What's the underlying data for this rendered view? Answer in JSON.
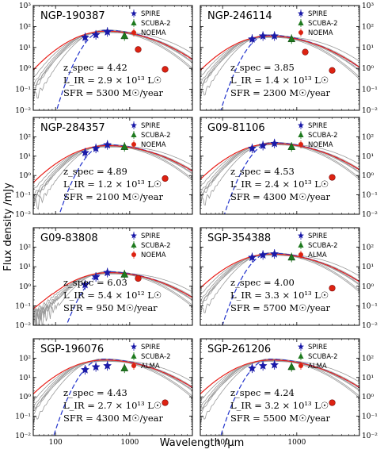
{
  "figure": {
    "ylabel": "Flux density /mJy",
    "xlabel": "Wavelength /μm",
    "y_tick_labels": [
      "10⁻²",
      "10⁻¹",
      "10⁰",
      "10¹",
      "10²",
      "10³"
    ],
    "x_tick_labels": [
      "100",
      "1000"
    ]
  },
  "chart_data": [
    {
      "type": "scatter",
      "name": "NGP-190387",
      "z_spec": "z_spec = 4.42",
      "L_IR": "L_IR = 2.9 × 10¹³ L☉",
      "SFR": "SFR = 5300 M☉/year",
      "legend": [
        "SPIRE",
        "SCUBA-2",
        "NOEMA"
      ],
      "xlim": [
        50,
        7000
      ],
      "ylim": [
        0.01,
        1000
      ],
      "xscale": "log",
      "yscale": "log",
      "points": {
        "SPIRE": [
          [
            250,
            30
          ],
          [
            350,
            40
          ],
          [
            500,
            55
          ]
        ],
        "SCUBA-2": [
          [
            850,
            35
          ]
        ],
        "NOEMA": [
          [
            1300,
            8
          ],
          [
            3000,
            0.9
          ]
        ]
      },
      "x_label_side": "hidden",
      "y_label_side": "left",
      "best_fit_peak": [
        480,
        60
      ]
    },
    {
      "type": "scatter",
      "name": "NGP-246114",
      "z_spec": "z_spec = 3.85",
      "L_IR": "L_IR = 1.4 × 10¹³ L☉",
      "SFR": "SFR = 2300 M☉/year",
      "legend": [
        "SPIRE",
        "SCUBA-2",
        "NOEMA"
      ],
      "xlim": [
        50,
        7000
      ],
      "ylim": [
        0.01,
        1000
      ],
      "xscale": "log",
      "yscale": "log",
      "points": {
        "SPIRE": [
          [
            250,
            25
          ],
          [
            350,
            35
          ],
          [
            500,
            35
          ]
        ],
        "SCUBA-2": [
          [
            850,
            25
          ]
        ],
        "NOEMA": [
          [
            1300,
            6
          ],
          [
            3000,
            0.8
          ]
        ]
      },
      "x_label_side": "hidden",
      "y_label_side": "right",
      "best_fit_peak": [
        420,
        35
      ]
    },
    {
      "type": "scatter",
      "name": "NGP-284357",
      "z_spec": "z_spec = 4.89",
      "L_IR": "L_IR = 1.2 × 10¹³ L☉",
      "SFR": "SFR = 2100 M☉/year",
      "legend": [
        "SPIRE",
        "SCUBA-2",
        "NOEMA"
      ],
      "xlim": [
        50,
        7000
      ],
      "ylim": [
        0.01,
        1000
      ],
      "xscale": "log",
      "yscale": "log",
      "points": {
        "SPIRE": [
          [
            250,
            15
          ],
          [
            350,
            25
          ],
          [
            500,
            38
          ]
        ],
        "SCUBA-2": [
          [
            850,
            30
          ]
        ],
        "NOEMA": [
          [
            3000,
            0.7
          ]
        ]
      },
      "x_label_side": "hidden",
      "y_label_side": "left",
      "best_fit_peak": [
        500,
        35
      ]
    },
    {
      "type": "scatter",
      "name": "G09-81106",
      "z_spec": "z_spec = 4.53",
      "L_IR": "L_IR = 2.4 × 10¹³ L☉",
      "SFR": "SFR = 4300 M☉/year",
      "legend": [
        "SPIRE",
        "SCUBA-2",
        "NOEMA"
      ],
      "xlim": [
        50,
        7000
      ],
      "ylim": [
        0.01,
        1000
      ],
      "xscale": "log",
      "yscale": "log",
      "points": {
        "SPIRE": [
          [
            250,
            25
          ],
          [
            350,
            35
          ],
          [
            500,
            45
          ]
        ],
        "SCUBA-2": [
          [
            850,
            30
          ]
        ],
        "NOEMA": [
          [
            3000,
            0.8
          ]
        ]
      },
      "x_label_side": "hidden",
      "y_label_side": "right",
      "best_fit_peak": [
        480,
        45
      ]
    },
    {
      "type": "scatter",
      "name": "G09-83808",
      "z_spec": "z_spec = 6.03",
      "L_IR": "L_IR = 5.4 × 10¹² L☉",
      "SFR": "SFR = 950 M☉/year",
      "legend": [
        "SPIRE",
        "SCUBA-2",
        "NOEMA"
      ],
      "xlim": [
        50,
        7000
      ],
      "ylim": [
        0.01,
        1000
      ],
      "xscale": "log",
      "yscale": "log",
      "points": {
        "SPIRE": [
          [
            250,
            1.2
          ],
          [
            350,
            3
          ],
          [
            500,
            5
          ]
        ],
        "SCUBA-2": [
          [
            850,
            4
          ]
        ],
        "NOEMA": [
          [
            1300,
            2.5
          ]
        ]
      },
      "x_label_side": "hidden",
      "y_label_side": "left",
      "best_fit_peak": [
        520,
        5
      ]
    },
    {
      "type": "scatter",
      "name": "SGP-354388",
      "z_spec": "z_spec = 4.00",
      "L_IR": "L_IR = 3.3 × 10¹³ L☉",
      "SFR": "SFR = 5700 M☉/year",
      "legend": [
        "SPIRE",
        "SCUBA-2",
        "ALMA"
      ],
      "xlim": [
        50,
        7000
      ],
      "ylim": [
        0.01,
        1000
      ],
      "xscale": "log",
      "yscale": "log",
      "points": {
        "SPIRE": [
          [
            250,
            30
          ],
          [
            350,
            40
          ],
          [
            500,
            45
          ]
        ],
        "SCUBA-2": [
          [
            850,
            30
          ]
        ],
        "ALMA": [
          [
            3000,
            0.8
          ]
        ]
      },
      "x_label_side": "hidden",
      "y_label_side": "right",
      "best_fit_peak": [
        450,
        45
      ]
    },
    {
      "type": "scatter",
      "name": "SGP-196076",
      "z_spec": "z_spec = 4.43",
      "L_IR": "L_IR = 2.7 × 10¹³ L☉",
      "SFR": "SFR = 4300 M☉/year",
      "legend": [
        "SPIRE",
        "SCUBA-2",
        "ALMA"
      ],
      "xlim": [
        50,
        7000
      ],
      "ylim": [
        0.01,
        1000
      ],
      "xscale": "log",
      "yscale": "log",
      "points": {
        "SPIRE": [
          [
            250,
            25
          ],
          [
            350,
            35
          ],
          [
            500,
            40
          ]
        ],
        "SCUBA-2": [
          [
            850,
            30
          ]
        ],
        "ALMA": [
          [
            3000,
            0.5
          ]
        ]
      },
      "x_label_side": "bottom",
      "y_label_side": "left",
      "best_fit_peak": [
        450,
        80
      ]
    },
    {
      "type": "scatter",
      "name": "SGP-261206",
      "z_spec": "z_spec = 4.24",
      "L_IR": "L_IR = 3.2 × 10¹³ L☉",
      "SFR": "SFR = 5500 M☉/year",
      "legend": [
        "SPIRE",
        "SCUBA-2",
        "ALMA"
      ],
      "xlim": [
        50,
        7000
      ],
      "ylim": [
        0.01,
        1000
      ],
      "xscale": "log",
      "yscale": "log",
      "points": {
        "SPIRE": [
          [
            250,
            30
          ],
          [
            350,
            40
          ],
          [
            500,
            45
          ]
        ],
        "SCUBA-2": [
          [
            850,
            35
          ]
        ],
        "ALMA": [
          [
            3000,
            0.5
          ]
        ]
      },
      "x_label_side": "bottom",
      "y_label_side": "right",
      "best_fit_peak": [
        450,
        80
      ]
    }
  ],
  "colors": {
    "SPIRE": "#1a1aa8",
    "SCUBA-2": "#1e7a1e",
    "NOEMA": "#dd2211",
    "ALMA": "#dd2211",
    "best_fit": "#e8201a",
    "template_dashed": "#2233cc",
    "templates_grey": "#9a9a9a",
    "axes": "#000000"
  }
}
